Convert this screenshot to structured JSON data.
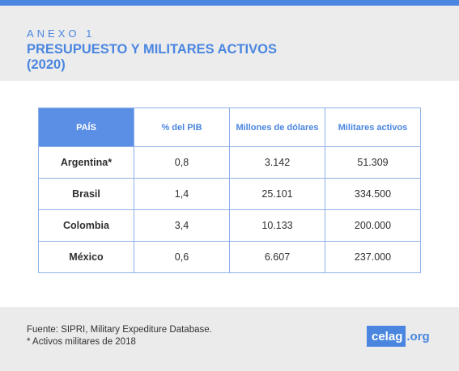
{
  "annex_label": "ANEXO 1",
  "title": "PRESUPUESTO Y MILITARES ACTIVOS (2020)",
  "table": {
    "headers": [
      "PAÍS",
      "% del PIB",
      "Millones de dólares",
      "Militares activos"
    ],
    "rows": [
      [
        "Argentina*",
        "0,8",
        "3.142",
        "51.309"
      ],
      [
        "Brasil",
        "1,4",
        "25.101",
        "334.500"
      ],
      [
        "Colombia",
        "3,4",
        "10.133",
        "200.000"
      ],
      [
        "México",
        "0,6",
        "6.607",
        "237.000"
      ]
    ]
  },
  "footer": {
    "source": "Fuente: SIPRI, Military Expediture Database.",
    "note": "* Activos militares de 2018",
    "logo_main": "celag",
    "logo_ext": ".org"
  },
  "colors": {
    "accent": "#4a86e0",
    "header_cell": "#5b8fe6",
    "border": "#8fb0e8"
  }
}
